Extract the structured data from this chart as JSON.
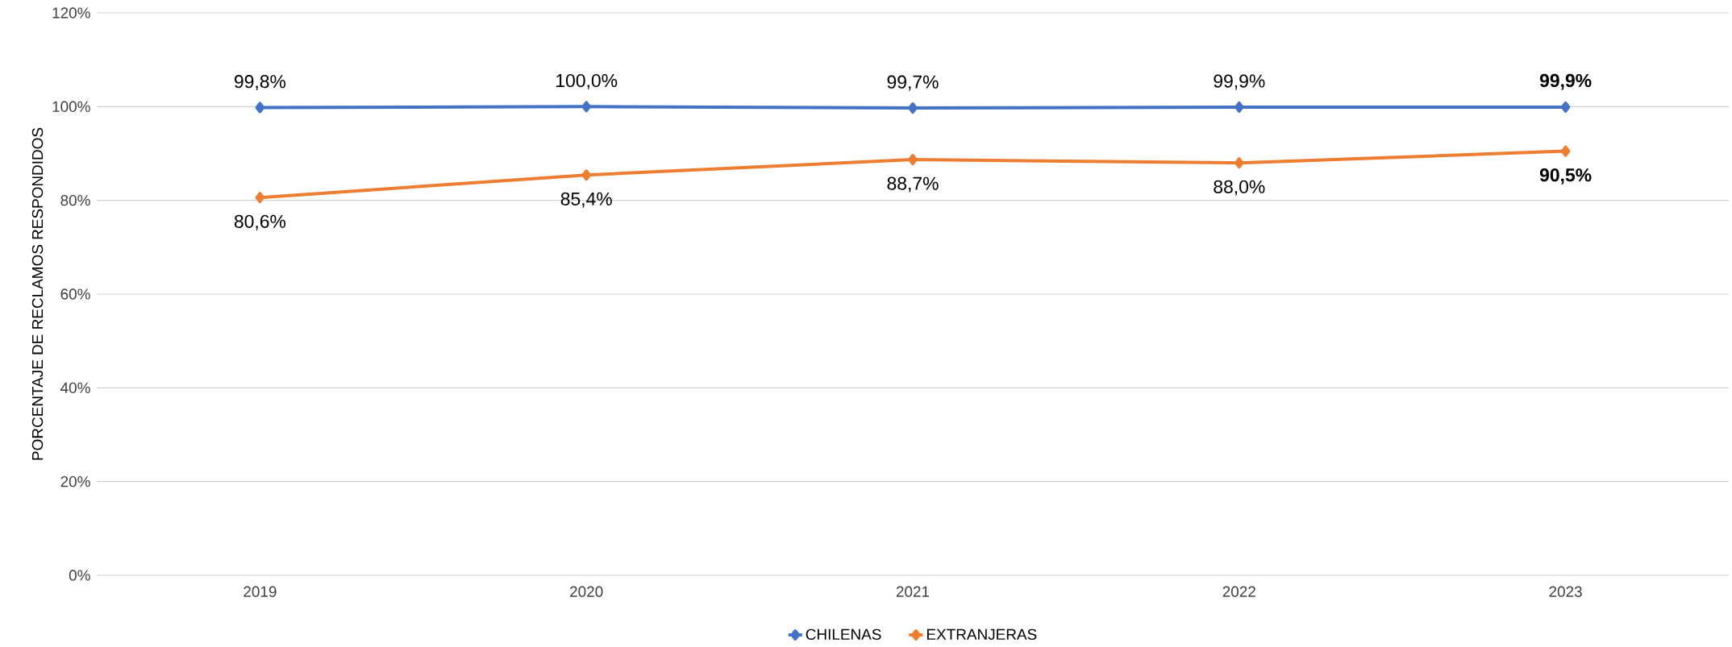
{
  "chart_data": {
    "type": "line",
    "ylabel": "PORCENTAJE DE RECLAMOS RESPONDIDOS",
    "categories": [
      "2019",
      "2020",
      "2021",
      "2022",
      "2023"
    ],
    "series": [
      {
        "name": "CHILENAS",
        "color": "#4472c4",
        "values": [
          99.8,
          100.0,
          99.7,
          99.9,
          99.9
        ],
        "value_labels": [
          "99,8%",
          "100,0%",
          "99,7%",
          "99,9%",
          "**99,9%**"
        ]
      },
      {
        "name": "EXTRANJERAS",
        "color": "#ed7d31",
        "values": [
          80.6,
          85.4,
          88.7,
          88.0,
          90.5
        ],
        "value_labels": [
          "80,6%",
          "85,4%",
          "88,7%",
          "88,0%",
          "**90,5%**"
        ]
      }
    ],
    "ylim": [
      0,
      120
    ],
    "yticks": [
      {
        "value": 0,
        "label": "0%"
      },
      {
        "value": 20,
        "label": "20%"
      },
      {
        "value": 40,
        "label": "40%"
      },
      {
        "value": 60,
        "label": "60%"
      },
      {
        "value": 80,
        "label": "80%"
      },
      {
        "value": 100,
        "label": "100%"
      },
      {
        "value": 120,
        "label": "120%"
      }
    ],
    "grid": "y",
    "legend": "bottom",
    "marker": "diamond",
    "line_style": "solid"
  }
}
